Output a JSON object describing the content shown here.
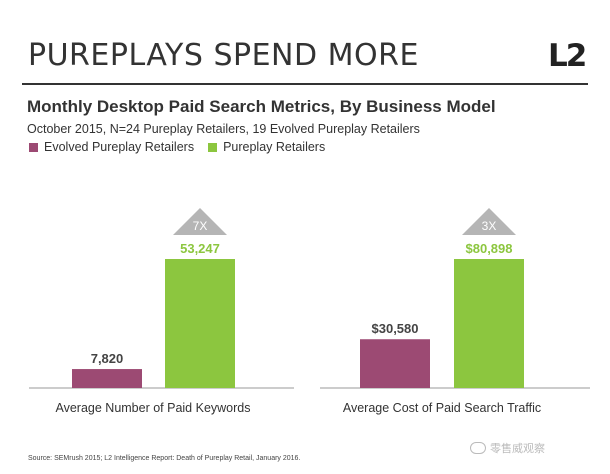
{
  "header": {
    "headline": "PUREPLAYS SPEND MORE",
    "logo": "L2"
  },
  "chart_data": {
    "type": "bar",
    "title": "Monthly Desktop Paid Search Metrics, By Business Model",
    "subtitle": "October 2015, N=24 Pureplay Retailers, 19 Evolved Pureplay Retailers",
    "legend_position": "top-left",
    "grid": false,
    "series": [
      {
        "name": "Evolved Pureplay Retailers",
        "color": "#9c4a73"
      },
      {
        "name": "Pureplay Retailers",
        "color": "#8cc63f"
      }
    ],
    "panels": [
      {
        "xlabel": "Average Number of Paid Keywords",
        "values": [
          7820,
          53247
        ],
        "labels": [
          "7,820",
          "53,247"
        ],
        "multiplier": "7X",
        "ylim": [
          0,
          53247
        ]
      },
      {
        "xlabel": "Average Cost of Paid Search Traffic",
        "values": [
          30580,
          80898
        ],
        "labels": [
          "$30,580",
          "$80,898"
        ],
        "multiplier": "3X",
        "ylim": [
          0,
          80898
        ]
      }
    ]
  },
  "footer": {
    "source": "Source: SEMrush 2015; L2 Intelligence Report: Death of Pureplay Retail, January 2016.",
    "watermark": "零售威观察"
  }
}
